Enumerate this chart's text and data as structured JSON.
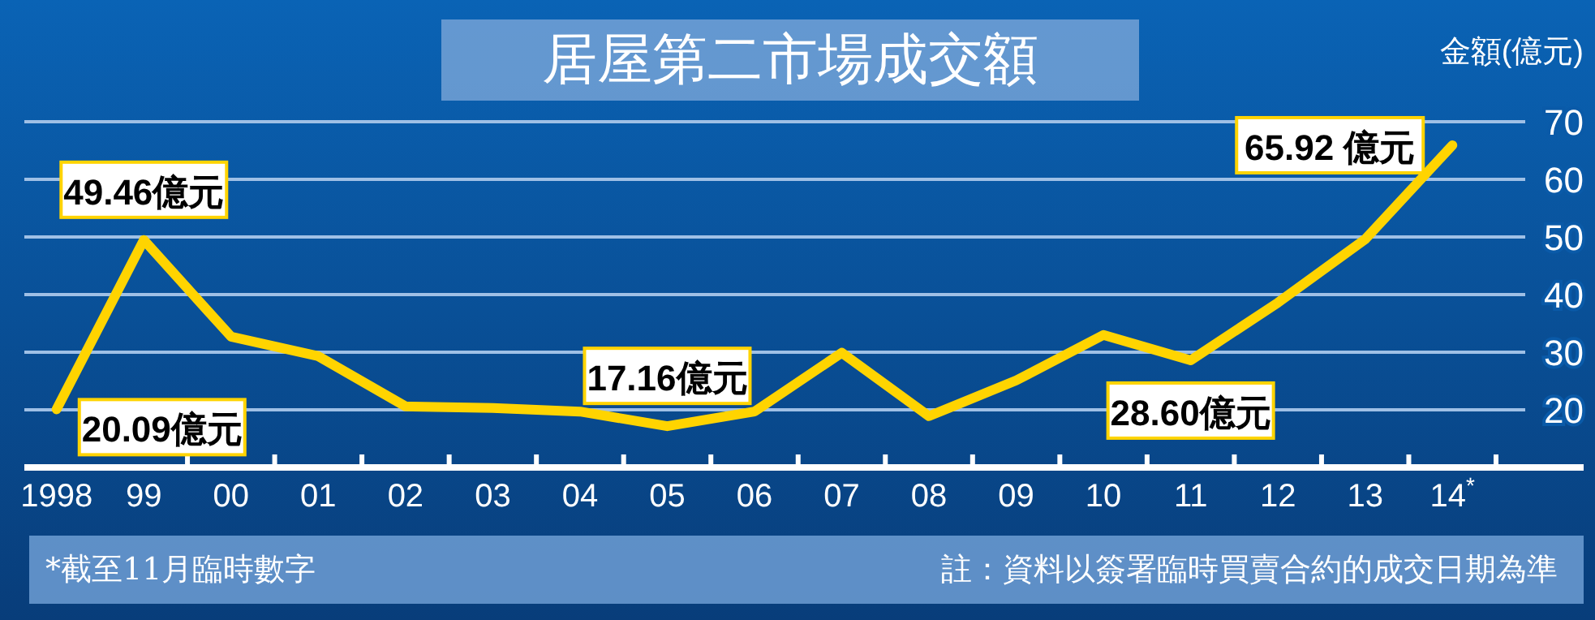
{
  "chart_data": {
    "type": "line",
    "title": "居屋第二市場成交額",
    "ylabel": "金額(億元)",
    "categories": [
      "1998",
      "99",
      "00",
      "01",
      "02",
      "03",
      "04",
      "05",
      "06",
      "07",
      "08",
      "09",
      "10",
      "11",
      "12",
      "13",
      "14$^{*}$"
    ],
    "series": [
      {
        "color": "#ffd400",
        "values": [
          20.09,
          49.46,
          32.7,
          29.3,
          20.6,
          20.3,
          19.7,
          17.16,
          19.7,
          29.9,
          18.9,
          25.1,
          33.0,
          28.6,
          38.6,
          49.6,
          65.92
        ],
        "value_labels": [
          "20.09億元",
          "49.46億元",
          null,
          null,
          null,
          null,
          null,
          "17.16億元",
          null,
          null,
          null,
          null,
          null,
          "28.60億元",
          null,
          null,
          "65.92 億元"
        ]
      }
    ],
    "ylim": [
      10,
      70
    ],
    "yticks": [
      20,
      30,
      40,
      50,
      60,
      70
    ],
    "grid": "y",
    "marker": "none",
    "line_style": "solid",
    "annotations": [
      "*截至11月臨時數字",
      "註：資料以簽署臨時買賣合約的成交日期為準"
    ]
  }
}
